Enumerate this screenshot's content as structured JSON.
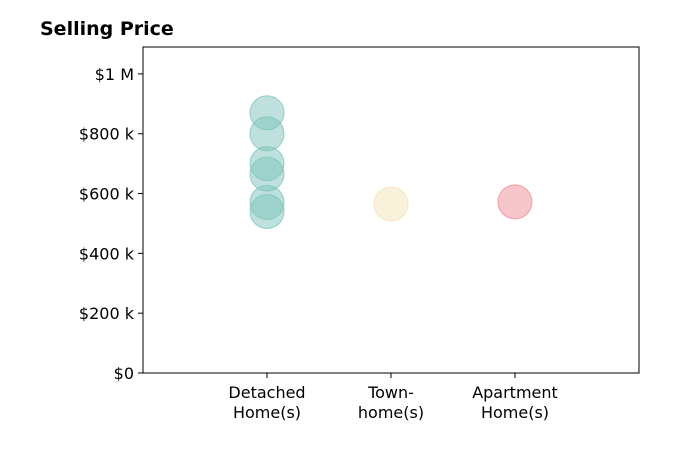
{
  "chart_data": {
    "type": "scatter",
    "title": "Selling Price",
    "xlabel": "",
    "ylabel": "",
    "categories": [
      [
        "Detached",
        "Home(s)"
      ],
      [
        "Town-",
        "home(s)"
      ],
      [
        "Apartment",
        "Home(s)"
      ]
    ],
    "y_ticks": [
      {
        "value": 0,
        "label": "$0"
      },
      {
        "value": 200000,
        "label": "$200 k"
      },
      {
        "value": 400000,
        "label": "$400 k"
      },
      {
        "value": 600000,
        "label": "$600 k"
      },
      {
        "value": 800000,
        "label": "$800 k"
      },
      {
        "value": 1000000,
        "label": "$1 M"
      }
    ],
    "ylim": [
      0,
      1090000
    ],
    "xlim": [
      0,
      4
    ],
    "grid": false,
    "series": [
      {
        "category_index": 0,
        "color": "#7ec4bb",
        "values": [
          870000,
          800000,
          700000,
          665000,
          570000,
          540000
        ]
      },
      {
        "category_index": 1,
        "color": "#f5e3b8",
        "values": [
          565000
        ]
      },
      {
        "category_index": 2,
        "color": "#f08e95",
        "values": [
          572000
        ]
      }
    ],
    "marker_opacity": 0.5
  }
}
